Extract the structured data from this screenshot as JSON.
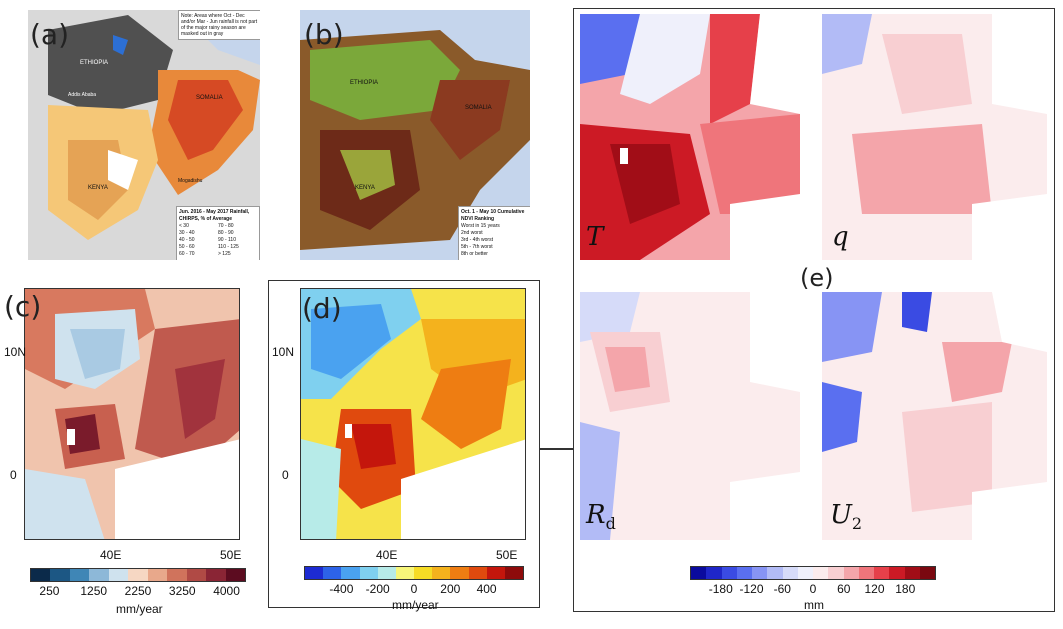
{
  "panels": {
    "a": {
      "label": "(a)",
      "note": "Note: Areas where Oct - Dec and/or Mar - Jun rainfall is not part of the major rainy season are masked out in gray",
      "legend_title": "Jun. 2016 - May 2017 Rainfall, CHIRPS, % of Average",
      "legend_items": [
        "< 30",
        "30 - 40",
        "40 - 50",
        "50 - 60",
        "60 - 70",
        "70 - 80",
        "80 - 90",
        "90 - 110",
        "110 - 125",
        "> 125"
      ],
      "places": [
        "ETHIOPIA",
        "SOMALIA",
        "KENYA",
        "Addis Ababa",
        "Mogadishu"
      ]
    },
    "b": {
      "label": "(b)",
      "legend_title": "Oct. 1 - May 10 Cumulative NDVI Ranking",
      "legend_items": [
        "Worst in 15 years",
        "2nd worst",
        "3rd - 4th worst",
        "5th - 7th worst",
        "8th or better"
      ],
      "places": [
        "ETHIOPIA",
        "SOMALIA",
        "KENYA"
      ]
    },
    "c": {
      "label": "(c)",
      "lat_ticks": [
        "10N",
        "0"
      ],
      "lon_ticks": [
        "40E",
        "50E"
      ],
      "colorbar": {
        "ticks": [
          "250",
          "1250",
          "2250",
          "3250",
          "4000"
        ],
        "unit": "mm/year",
        "colors": [
          "#0b2a4a",
          "#1c5784",
          "#3f86b6",
          "#8db8d8",
          "#cfe2ee",
          "#f6d7c3",
          "#e8a88b",
          "#d0735c",
          "#b04a45",
          "#8a2535",
          "#5c0c20"
        ]
      }
    },
    "d": {
      "label": "(d)",
      "lat_ticks": [
        "10N",
        "0"
      ],
      "lon_ticks": [
        "40E",
        "50E"
      ],
      "colorbar": {
        "ticks": [
          "-400",
          "-200",
          "0",
          "200",
          "400"
        ],
        "unit": "mm/year",
        "colors": [
          "#1d2bd3",
          "#2d63e8",
          "#4aa2f0",
          "#7fd0ef",
          "#b7ebe8",
          "#f7f67a",
          "#f6dc25",
          "#f4b21d",
          "#ee7d12",
          "#e04a0e",
          "#c4160c",
          "#8e0b0b"
        ]
      }
    },
    "e": {
      "label": "(e)",
      "vars": {
        "T": "T",
        "q": "q",
        "Rd_base": "R",
        "Rd_sub": "d",
        "U2_base": "U",
        "U2_sub": "2"
      },
      "colorbar": {
        "ticks": [
          "-180",
          "-120",
          "-60",
          "0",
          "60",
          "120",
          "180"
        ],
        "unit": "mm",
        "colors": [
          "#0a0a9e",
          "#1f26c8",
          "#3a4be3",
          "#5a6ff0",
          "#8794f4",
          "#b2bbf6",
          "#d6dbf9",
          "#eff0fb",
          "#fbeced",
          "#f8cfd2",
          "#f4a5aa",
          "#ef757b",
          "#e6404a",
          "#cc1a25",
          "#a10d17",
          "#7a0810"
        ]
      }
    }
  }
}
